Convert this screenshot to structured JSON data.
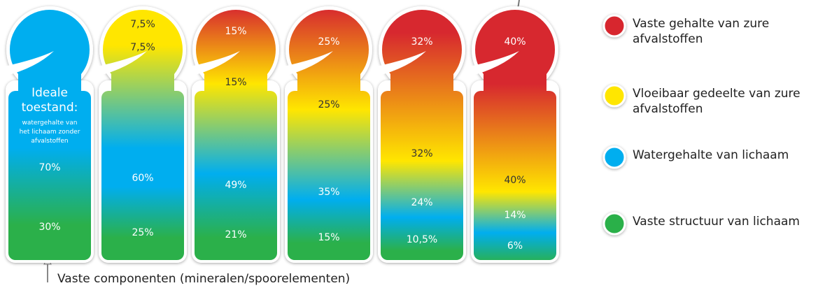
{
  "figures": [
    {
      "title": "Ideale toestand:",
      "subtitle": "watergehalte van het lichaam zonder afvalstoffen",
      "labels": [
        "70%",
        "30%"
      ]
    },
    {
      "labels": [
        "7,5%",
        "7,5%",
        "60%",
        "25%"
      ]
    },
    {
      "labels": [
        "15%",
        "15%",
        "49%",
        "21%"
      ]
    },
    {
      "labels": [
        "25%",
        "25%",
        "35%",
        "15%"
      ]
    },
    {
      "labels": [
        "32%",
        "32%",
        "24%",
        "10,5%"
      ]
    },
    {
      "labels": [
        "40%",
        "40%",
        "14%",
        "6%"
      ]
    }
  ],
  "legend": [
    {
      "color": "#d7282f",
      "label": "Vaste gehalte van zure afvalstoffen"
    },
    {
      "color": "#ffe600",
      "label": "Vloeibaar gedeelte van zure afvalstoffen"
    },
    {
      "color": "#00aeef",
      "label": "Watergehalte van lichaam"
    },
    {
      "color": "#2bb04a",
      "label": "Vaste structuur van lichaam"
    }
  ],
  "footnote": "Vaste componenten (mineralen/spoorelementen)"
}
